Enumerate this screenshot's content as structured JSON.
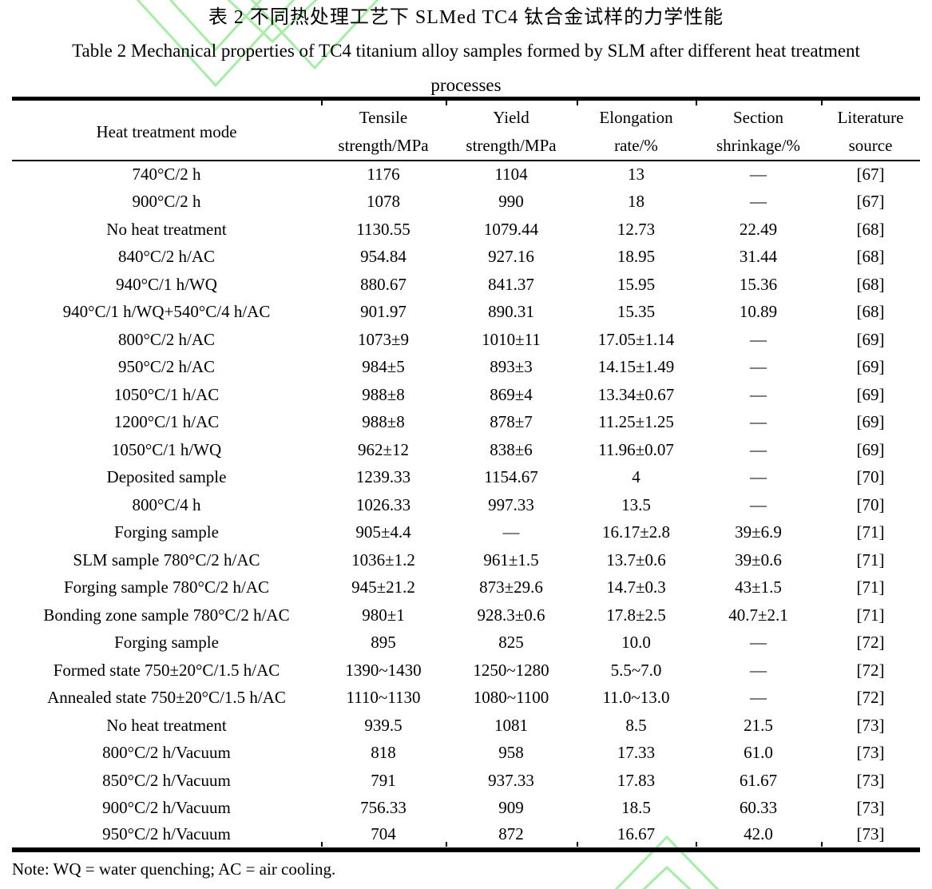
{
  "titles": {
    "zh": "表 2  不同热处理工艺下 SLMed TC4 钛合金试样的力学性能",
    "en_line1": "Table 2 Mechanical properties of TC4 titanium alloy samples formed by SLM after different heat treatment",
    "en_line2": "processes"
  },
  "table": {
    "headers": [
      {
        "l1": "Heat treatment mode",
        "l2": ""
      },
      {
        "l1": "Tensile",
        "l2": "strength/MPa"
      },
      {
        "l1": "Yield",
        "l2": "strength/MPa"
      },
      {
        "l1": "Elongation",
        "l2": "rate/%"
      },
      {
        "l1": "Section",
        "l2": "shrinkage/%"
      },
      {
        "l1": "Literature",
        "l2": "source"
      }
    ],
    "rows": [
      [
        "740°C/2 h",
        "1176",
        "1104",
        "13",
        "—",
        "[67]"
      ],
      [
        "900°C/2 h",
        "1078",
        "990",
        "18",
        "—",
        "[67]"
      ],
      [
        "No heat treatment",
        "1130.55",
        "1079.44",
        "12.73",
        "22.49",
        "[68]"
      ],
      [
        "840°C/2 h/AC",
        "954.84",
        "927.16",
        "18.95",
        "31.44",
        "[68]"
      ],
      [
        "940°C/1 h/WQ",
        "880.67",
        "841.37",
        "15.95",
        "15.36",
        "[68]"
      ],
      [
        "940°C/1 h/WQ+540°C/4 h/AC",
        "901.97",
        "890.31",
        "15.35",
        "10.89",
        "[68]"
      ],
      [
        "800°C/2 h/AC",
        "1073±9",
        "1010±11",
        "17.05±1.14",
        "—",
        "[69]"
      ],
      [
        "950°C/2 h/AC",
        "984±5",
        "893±3",
        "14.15±1.49",
        "—",
        "[69]"
      ],
      [
        "1050°C/1 h/AC",
        "988±8",
        "869±4",
        "13.34±0.67",
        "—",
        "[69]"
      ],
      [
        "1200°C/1 h/AC",
        "988±8",
        "878±7",
        "11.25±1.25",
        "—",
        "[69]"
      ],
      [
        "1050°C/1 h/WQ",
        "962±12",
        "838±6",
        "11.96±0.07",
        "—",
        "[69]"
      ],
      [
        "Deposited sample",
        "1239.33",
        "1154.67",
        "4",
        "—",
        "[70]"
      ],
      [
        "800°C/4 h",
        "1026.33",
        "997.33",
        "13.5",
        "—",
        "[70]"
      ],
      [
        "Forging sample",
        "905±4.4",
        "—",
        "16.17±2.8",
        "39±6.9",
        "[71]"
      ],
      [
        "SLM sample 780°C/2 h/AC",
        "1036±1.2",
        "961±1.5",
        "13.7±0.6",
        "39±0.6",
        "[71]"
      ],
      [
        "Forging sample 780°C/2 h/AC",
        "945±21.2",
        "873±29.6",
        "14.7±0.3",
        "43±1.5",
        "[71]"
      ],
      [
        "Bonding zone sample 780°C/2 h/AC",
        "980±1",
        "928.3±0.6",
        "17.8±2.5",
        "40.7±2.1",
        "[71]"
      ],
      [
        "Forging sample",
        "895",
        "825",
        "10.0",
        "—",
        "[72]"
      ],
      [
        "Formed state 750±20°C/1.5 h/AC",
        "1390~1430",
        "1250~1280",
        "5.5~7.0",
        "—",
        "[72]"
      ],
      [
        "Annealed state 750±20°C/1.5 h/AC",
        "1110~1130",
        "1080~1100",
        "11.0~13.0",
        "—",
        "[72]"
      ],
      [
        "No heat treatment",
        "939.5",
        "1081",
        "8.5",
        "21.5",
        "[73]"
      ],
      [
        "800°C/2 h/Vacuum",
        "818",
        "958",
        "17.33",
        "61.0",
        "[73]"
      ],
      [
        "850°C/2 h/Vacuum",
        "791",
        "937.33",
        "17.83",
        "61.67",
        "[73]"
      ],
      [
        "900°C/2 h/Vacuum",
        "756.33",
        "909",
        "18.5",
        "60.33",
        "[73]"
      ],
      [
        "950°C/2 h/Vacuum",
        "704",
        "872",
        "16.67",
        "42.0",
        "[73]"
      ]
    ]
  },
  "note": "Note: WQ = water quenching; AC = air cooling.",
  "colors": {
    "watermark_green": "#a6eda6",
    "rule_black": "#000000",
    "text": "#000000"
  }
}
